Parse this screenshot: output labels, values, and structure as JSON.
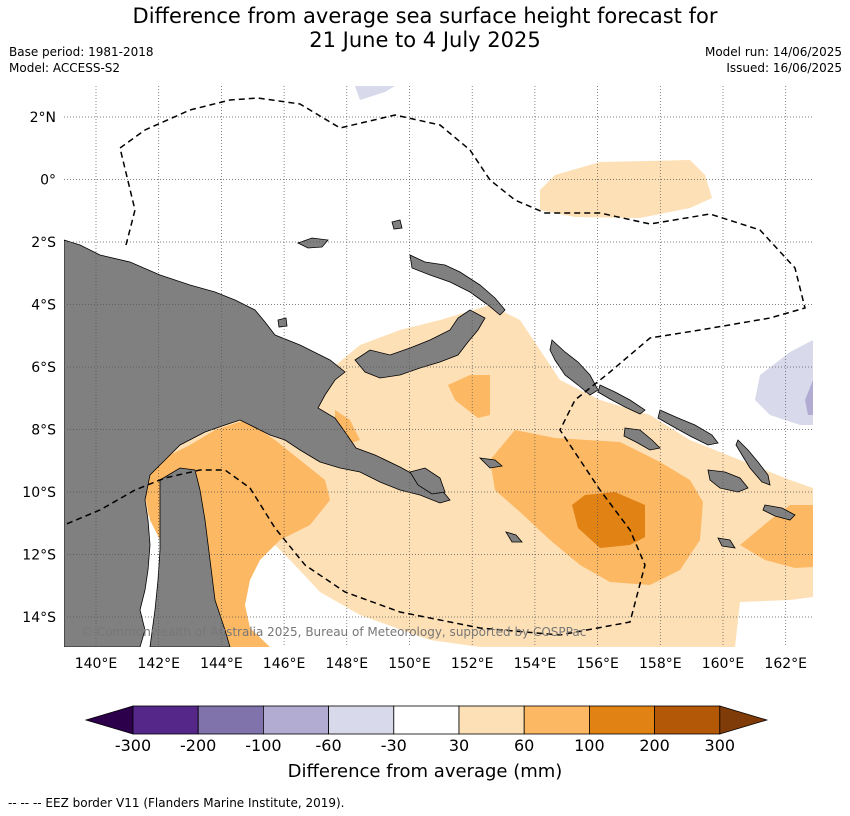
{
  "title_line1": "Difference from average sea surface height forecast for",
  "title_line2": "21 June to 4 July 2025",
  "base_period": "Base period: 1981-2018",
  "model": "Model: ACCESS-S2",
  "model_run": "Model run: 14/06/2025",
  "issued": "Issued: 16/06/2025",
  "copyright": "© Commonwealth of Australia 2025, Bureau of Meteorology, supported by COSPPac",
  "lat_labels": [
    "2°N",
    "0°",
    "2°S",
    "4°S",
    "6°S",
    "8°S",
    "10°S",
    "12°S",
    "14°S"
  ],
  "lon_labels": [
    "140°E",
    "142°E",
    "144°E",
    "146°E",
    "148°E",
    "150°E",
    "152°E",
    "154°E",
    "156°E",
    "158°E",
    "160°E",
    "162°E"
  ],
  "colorbar": {
    "title": "Difference from average (mm)",
    "ticks": [
      "-300",
      "-200",
      "-100",
      "-60",
      "-30",
      "30",
      "60",
      "100",
      "200",
      "300"
    ],
    "colors": [
      "#2d004b",
      "#542788",
      "#8073ac",
      "#b2abd2",
      "#d8daeb",
      "#ffffff",
      "#fee0b6",
      "#fdb863",
      "#e08214",
      "#b35806",
      "#7f3b08"
    ]
  },
  "footnote": "--  --  -- EEZ border V11 (Flanders Marine Institute, 2019).",
  "colors": {
    "land": "#808080",
    "grid": "#555555"
  }
}
